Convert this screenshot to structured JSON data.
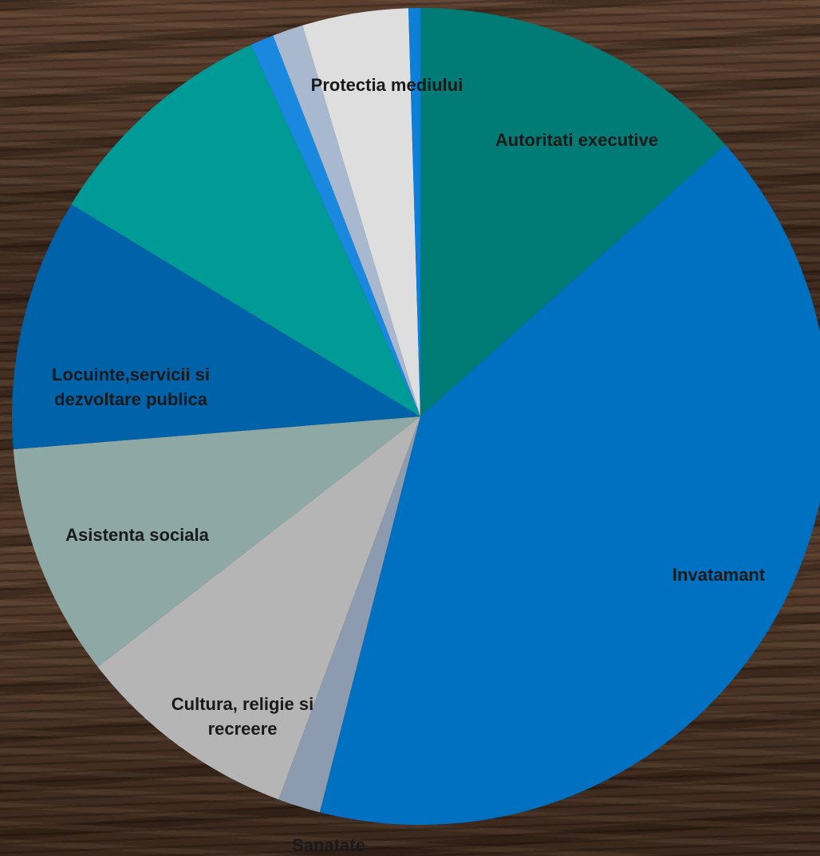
{
  "chart_data": {
    "type": "pie",
    "slices": [
      {
        "label": "Autoritati executive",
        "value": 14.4,
        "color": "#007b76"
      },
      {
        "label": "Invatamant",
        "value": 43.5,
        "color": "#0070c0"
      },
      {
        "label": "Sanatate",
        "value": 1.8,
        "color": "#8c9bb0"
      },
      {
        "label": "Cultura, religie si recreere",
        "value": 9.5,
        "color": "#b5b5b5"
      },
      {
        "label": "Asistenta sociala",
        "value": 9.9,
        "color": "#8ea8a5"
      },
      {
        "label": "Locuinte,servicii si dezvoltare publica",
        "value": 10.7,
        "color": "#0062a8"
      },
      {
        "label": "",
        "value": 10.2,
        "color": "#009a97"
      },
      {
        "label": "",
        "value": 1.0,
        "color": "#1b88e0"
      },
      {
        "label": "",
        "value": 1.3,
        "color": "#a8b8cf"
      },
      {
        "label": "Protectia mediului",
        "value": 4.5,
        "color": "#dedede"
      },
      {
        "label": "",
        "value": 0.5,
        "color": "#0d7fd6"
      }
    ]
  }
}
